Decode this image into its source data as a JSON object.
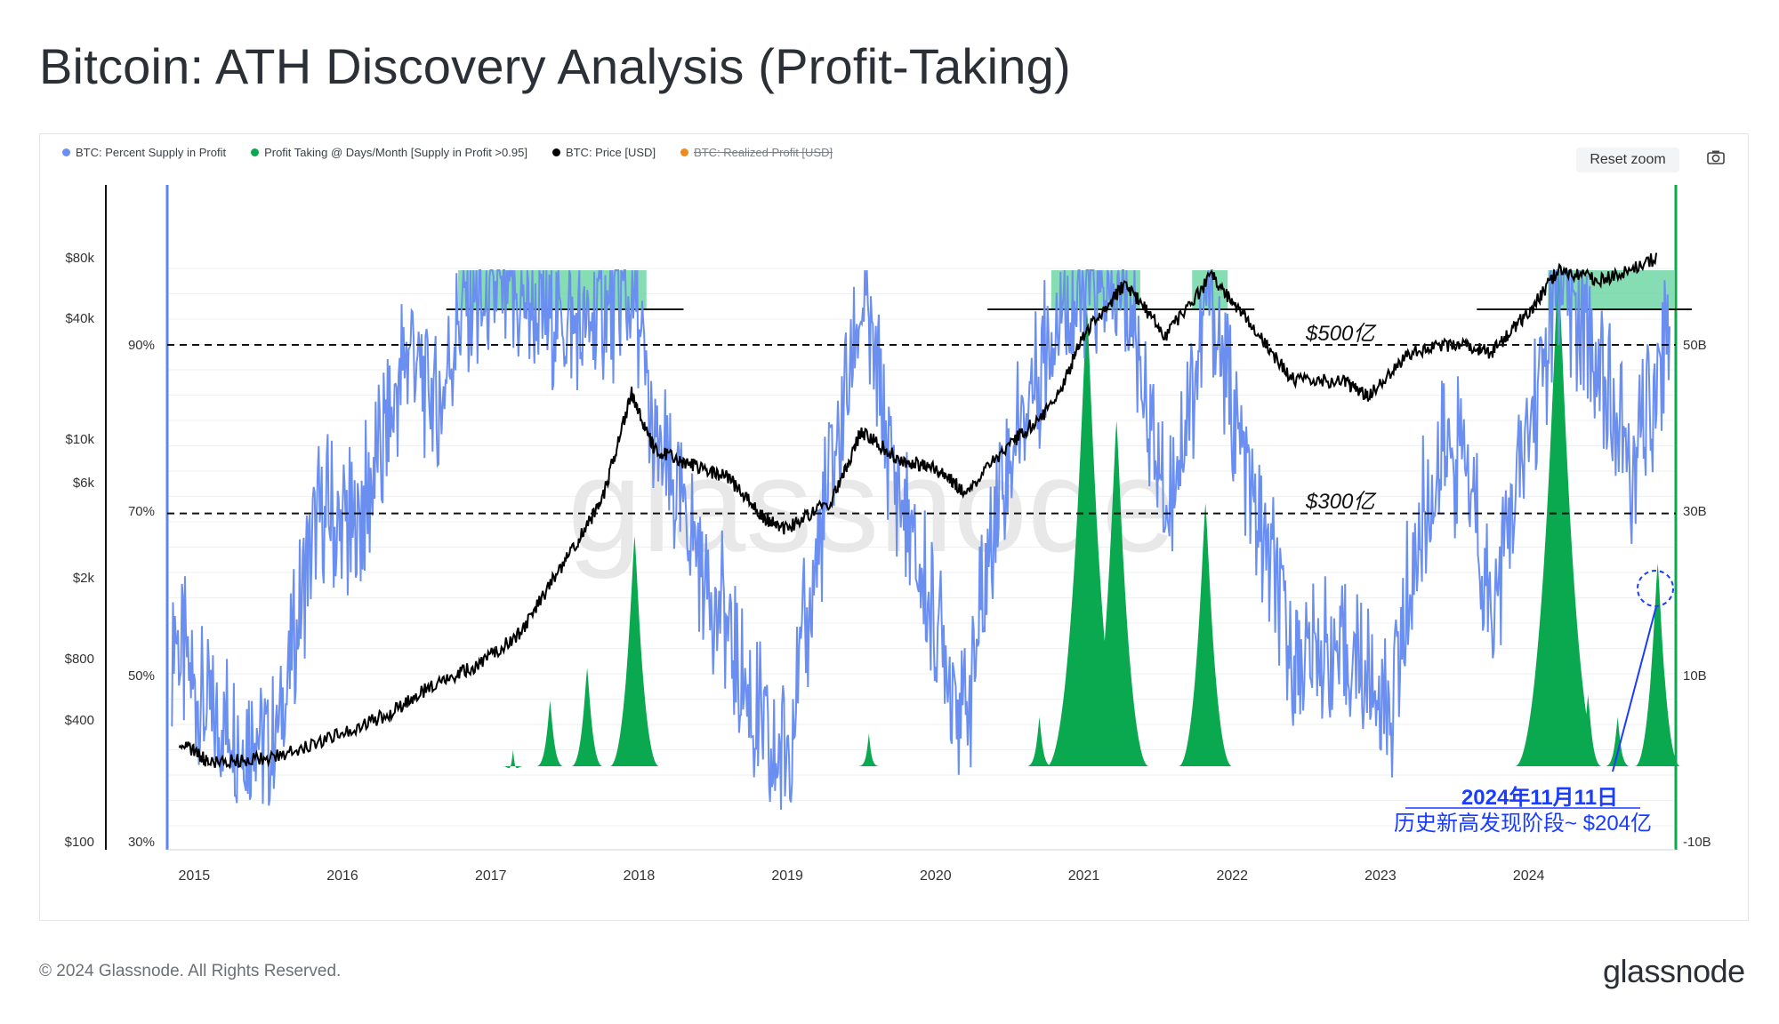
{
  "title": "Bitcoin: ATH Discovery Analysis (Profit-Taking)",
  "legend": [
    {
      "label": "BTC: Percent Supply in Profit",
      "color": "#6b8ff0",
      "strike": false
    },
    {
      "label": "Profit Taking @ Days/Month [Supply in Profit >0.95]",
      "color": "#0aa84f",
      "strike": false
    },
    {
      "label": "BTC: Price [USD]",
      "color": "#000000",
      "strike": false
    },
    {
      "label": "BTC: Realized Profit [USD]",
      "color": "#f08a1c",
      "strike": true
    }
  ],
  "toolbar": {
    "reset_zoom_label": "Reset zoom",
    "camera_icon": "camera-icon"
  },
  "footer": {
    "copyright": "© 2024 Glassnode. All Rights Reserved.",
    "brand": "glassnode"
  },
  "watermark": "glassnode",
  "chart_data": {
    "type": "line",
    "x_ticks": [
      "2015",
      "2016",
      "2017",
      "2018",
      "2019",
      "2020",
      "2021",
      "2022",
      "2023",
      "2024"
    ],
    "price_axis_ticks": [
      "$80k",
      "$40k",
      "$10k",
      "$6k",
      "$2k",
      "$800",
      "$400",
      "$100"
    ],
    "percent_axis_ticks": [
      "90%",
      "70%",
      "50%",
      "30%"
    ],
    "right_axis_ticks": [
      "50B",
      "30B",
      "10B",
      "-10B"
    ],
    "annotations": {
      "line_500": "$500亿",
      "line_300": "$300亿",
      "date_label": "2024年11月11日",
      "desc_label": "历史新高发现阶段~ $204亿"
    },
    "highlight_zones_years": [
      [
        2016.78,
        2018.05
      ],
      [
        2020.78,
        2021.38
      ],
      [
        2021.73,
        2021.97
      ],
      [
        2024.13,
        2024.98
      ]
    ],
    "profit_taking_peaks": [
      {
        "x": 2017.15,
        "value": 0.3
      },
      {
        "x": 2017.4,
        "value": 1.2
      },
      {
        "x": 2017.65,
        "value": 1.8
      },
      {
        "x": 2017.97,
        "value": 4.2
      },
      {
        "x": 2019.55,
        "value": 0.6
      },
      {
        "x": 2020.7,
        "value": 0.9
      },
      {
        "x": 2021.02,
        "value": 8.4
      },
      {
        "x": 2021.22,
        "value": 6.3
      },
      {
        "x": 2021.82,
        "value": 4.8
      },
      {
        "x": 2024.2,
        "value": 9.2
      },
      {
        "x": 2024.4,
        "value": 1.3
      },
      {
        "x": 2024.6,
        "value": 0.9
      },
      {
        "x": 2024.87,
        "value": 3.7
      }
    ],
    "price_keypoints": [
      [
        2014.9,
        320
      ],
      [
        2015.1,
        250
      ],
      [
        2015.5,
        260
      ],
      [
        2015.9,
        330
      ],
      [
        2016.3,
        430
      ],
      [
        2016.6,
        600
      ],
      [
        2016.9,
        750
      ],
      [
        2017.2,
        1100
      ],
      [
        2017.5,
        2500
      ],
      [
        2017.75,
        5000
      ],
      [
        2017.95,
        17000
      ],
      [
        2018.1,
        9000
      ],
      [
        2018.35,
        7500
      ],
      [
        2018.6,
        6500
      ],
      [
        2018.85,
        4000
      ],
      [
        2019.0,
        3600
      ],
      [
        2019.3,
        5000
      ],
      [
        2019.5,
        11000
      ],
      [
        2019.75,
        8000
      ],
      [
        2020.0,
        7200
      ],
      [
        2020.2,
        5500
      ],
      [
        2020.5,
        9500
      ],
      [
        2020.8,
        15000
      ],
      [
        2021.0,
        33000
      ],
      [
        2021.28,
        60000
      ],
      [
        2021.55,
        33000
      ],
      [
        2021.86,
        65000
      ],
      [
        2022.1,
        40000
      ],
      [
        2022.4,
        20000
      ],
      [
        2022.75,
        19500
      ],
      [
        2022.92,
        16500
      ],
      [
        2023.2,
        27000
      ],
      [
        2023.5,
        30000
      ],
      [
        2023.75,
        27000
      ],
      [
        2024.0,
        43000
      ],
      [
        2024.2,
        70000
      ],
      [
        2024.5,
        62000
      ],
      [
        2024.87,
        80000
      ]
    ]
  }
}
